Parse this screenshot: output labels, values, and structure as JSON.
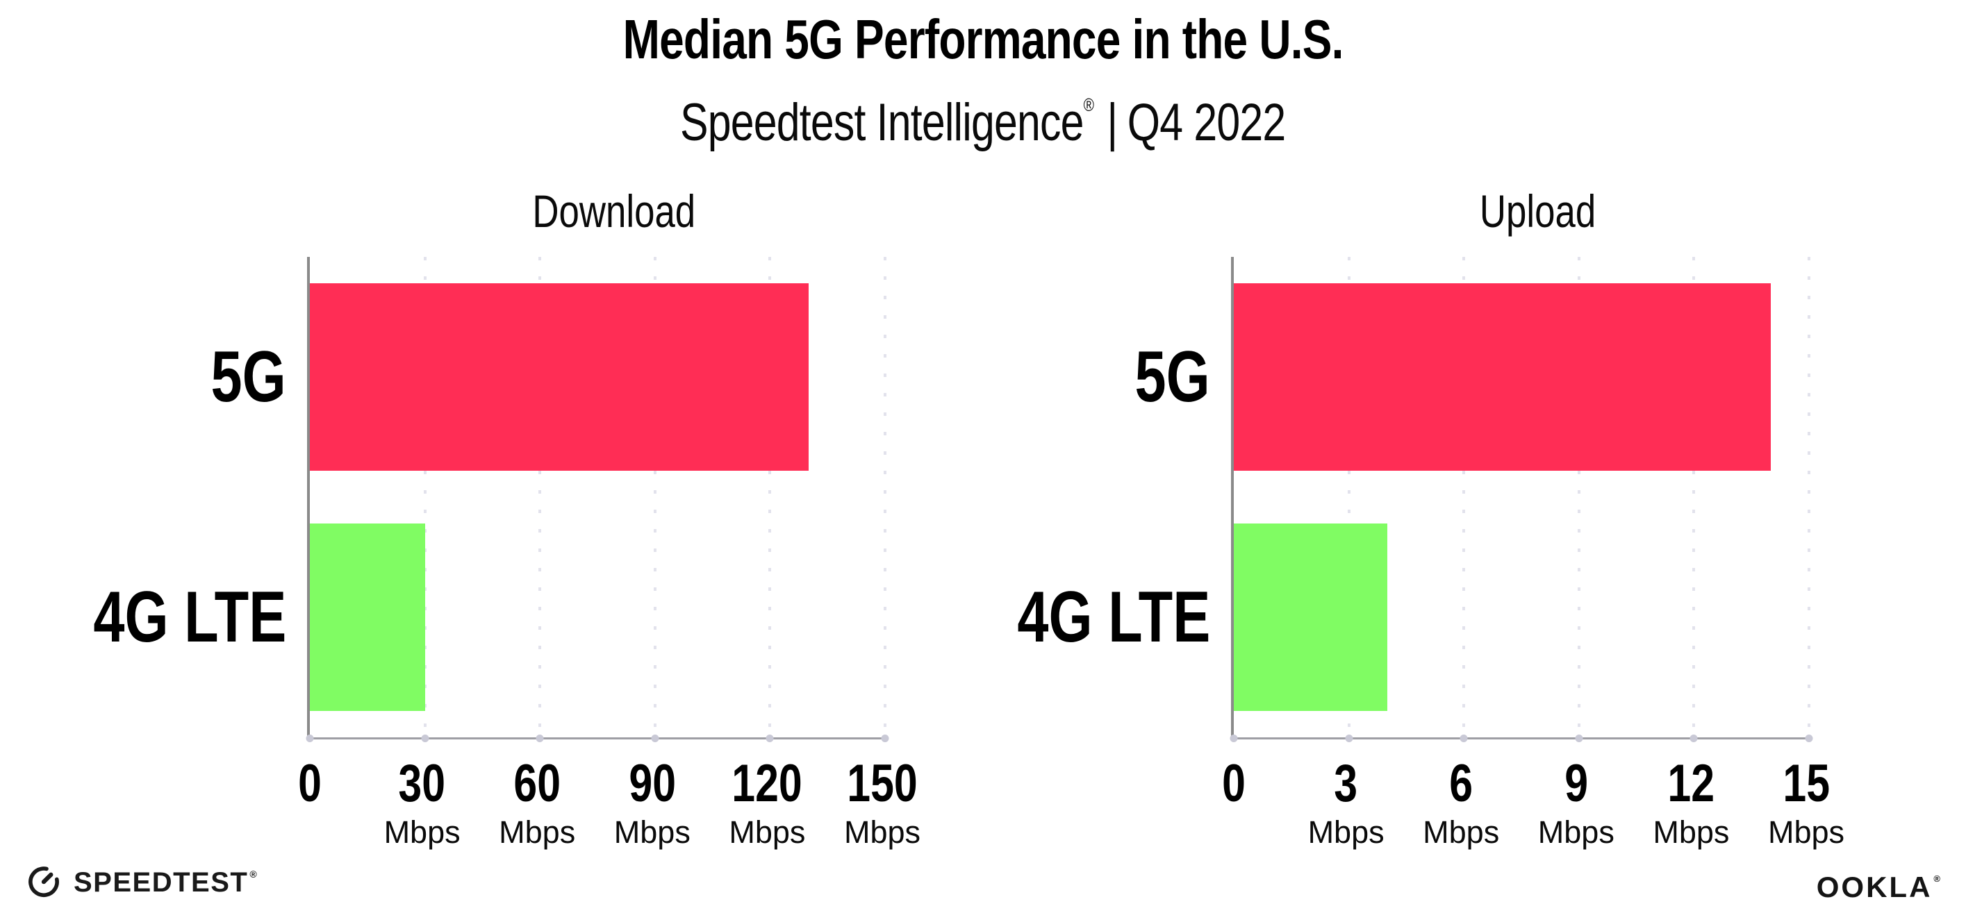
{
  "header": {
    "title": "Median 5G Performance in the U.S.",
    "subtitle_brand": "Speedtest Intelligence",
    "subtitle_mark": "®",
    "subtitle_separator": "|",
    "subtitle_period": "Q4 2022"
  },
  "chart_data": [
    {
      "type": "bar",
      "orientation": "horizontal",
      "title": "Download",
      "categories": [
        "5G",
        "4G LTE"
      ],
      "values": [
        130,
        30
      ],
      "unit": "Mbps",
      "xlim": [
        0,
        150
      ],
      "xticks": [
        "0",
        "30",
        "60",
        "90",
        "120",
        "150"
      ],
      "tick_unit_label": "Mbps",
      "bar_colors": [
        "#ff2d55",
        "#80fc63"
      ],
      "gridlines": "dotted-vertical",
      "legend": "none"
    },
    {
      "type": "bar",
      "orientation": "horizontal",
      "title": "Upload",
      "categories": [
        "5G",
        "4G LTE"
      ],
      "values": [
        14,
        4
      ],
      "unit": "Mbps",
      "xlim": [
        0,
        15
      ],
      "xticks": [
        "0",
        "3",
        "6",
        "9",
        "12",
        "15"
      ],
      "tick_unit_label": "Mbps",
      "bar_colors": [
        "#ff2d55",
        "#80fc63"
      ],
      "gridlines": "dotted-vertical",
      "legend": "none"
    }
  ],
  "footer": {
    "speedtest_label": "SPEEDTEST",
    "speedtest_mark": "®",
    "ookla_label": "OOKLA",
    "ookla_mark": "®"
  },
  "colors": {
    "bar_5g": "#ff2d55",
    "bar_4g_lte": "#80fc63",
    "axis_y": "#8a8a8a",
    "axis_x": "#9e9ea4",
    "gridline": "#e2e2ec",
    "text": "#000000",
    "background": "#ffffff"
  }
}
